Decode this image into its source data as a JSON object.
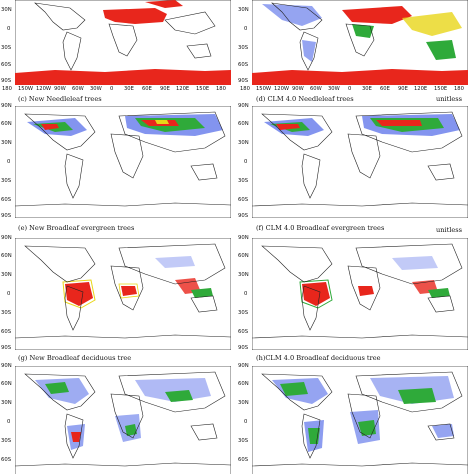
{
  "lon_ticks": [
    "180",
    "150W",
    "120W",
    "90W",
    "60W",
    "30W",
    "0",
    "30E",
    "60E",
    "90E",
    "120E",
    "150E",
    "180"
  ],
  "lat_ticks_full": [
    "90N",
    "60N",
    "30N",
    "0",
    "30S",
    "60S",
    "90S"
  ],
  "lat_ticks_top": [
    "30N",
    "0",
    "30S",
    "60S",
    "90S"
  ],
  "panels": {
    "a": {
      "caption": ""
    },
    "b": {
      "caption": ""
    },
    "c": {
      "caption": "(c) New Needleleaf trees"
    },
    "d": {
      "caption": "(d) CLM 4.0 Needleleaf trees",
      "unit": "unitless"
    },
    "e": {
      "caption": "(e) New Broadleaf evergreen trees"
    },
    "f": {
      "caption": "(f) CLM 4.0 Broadleaf evergreen trees",
      "unit": "unitless"
    },
    "g": {
      "caption": "(g) New Broadleaf deciduous tree"
    },
    "h": {
      "caption": "(h)CLM 4.0 Broadleaf deciduous tree"
    }
  },
  "colors": {
    "land_outline": "#222222",
    "low": "#dfe6ff",
    "mid": "#4f67e8",
    "high_green": "#2faa3a",
    "high_yellow": "#e9d619",
    "max_red": "#e8261c"
  }
}
